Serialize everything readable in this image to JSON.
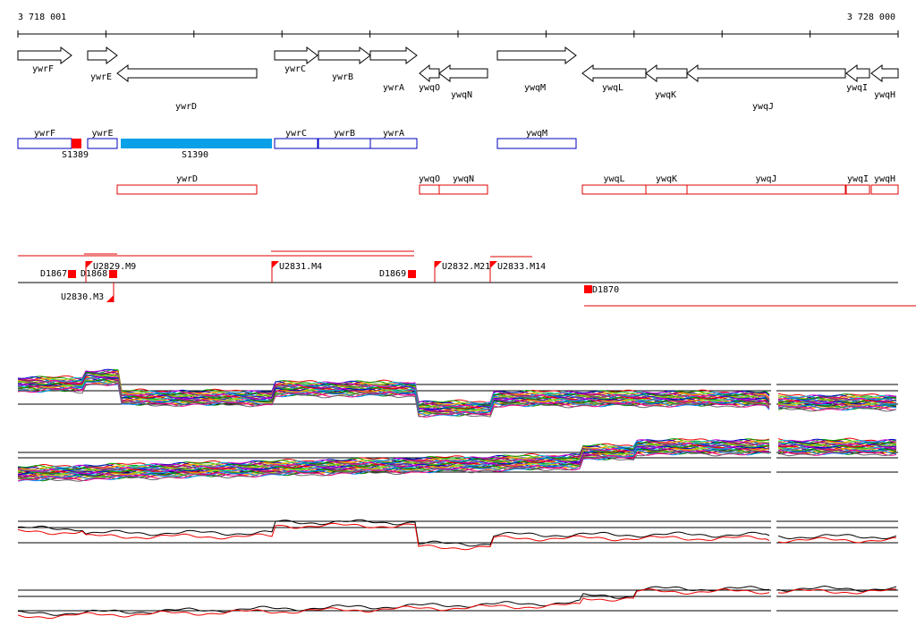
{
  "ruler": {
    "start": "3 718 001",
    "end": "3 728 000"
  },
  "genes": [
    "ywrF",
    "ywrE",
    "ywrD",
    "ywrC",
    "ywrB",
    "ywrA",
    "ywqO",
    "ywqN",
    "ywqM",
    "ywqL",
    "ywqK",
    "ywqJ",
    "ywqI",
    "ywqH"
  ],
  "plus_transcripts": [
    "ywrF",
    "ywrE",
    "ywrC",
    "ywrB",
    "ywrA",
    "ywqM"
  ],
  "segments": [
    "S1389",
    "S1390"
  ],
  "minus_transcripts": [
    "ywrD",
    "ywqO",
    "ywqN",
    "ywqL",
    "ywqK",
    "ywqJ",
    "ywqI",
    "ywqH"
  ],
  "features": [
    "D1867",
    "D1868",
    "U2829.M9",
    "U2830.M3",
    "U2831.M4",
    "D1869",
    "U2832.M21",
    "U2833.M14",
    "D1870"
  ]
}
